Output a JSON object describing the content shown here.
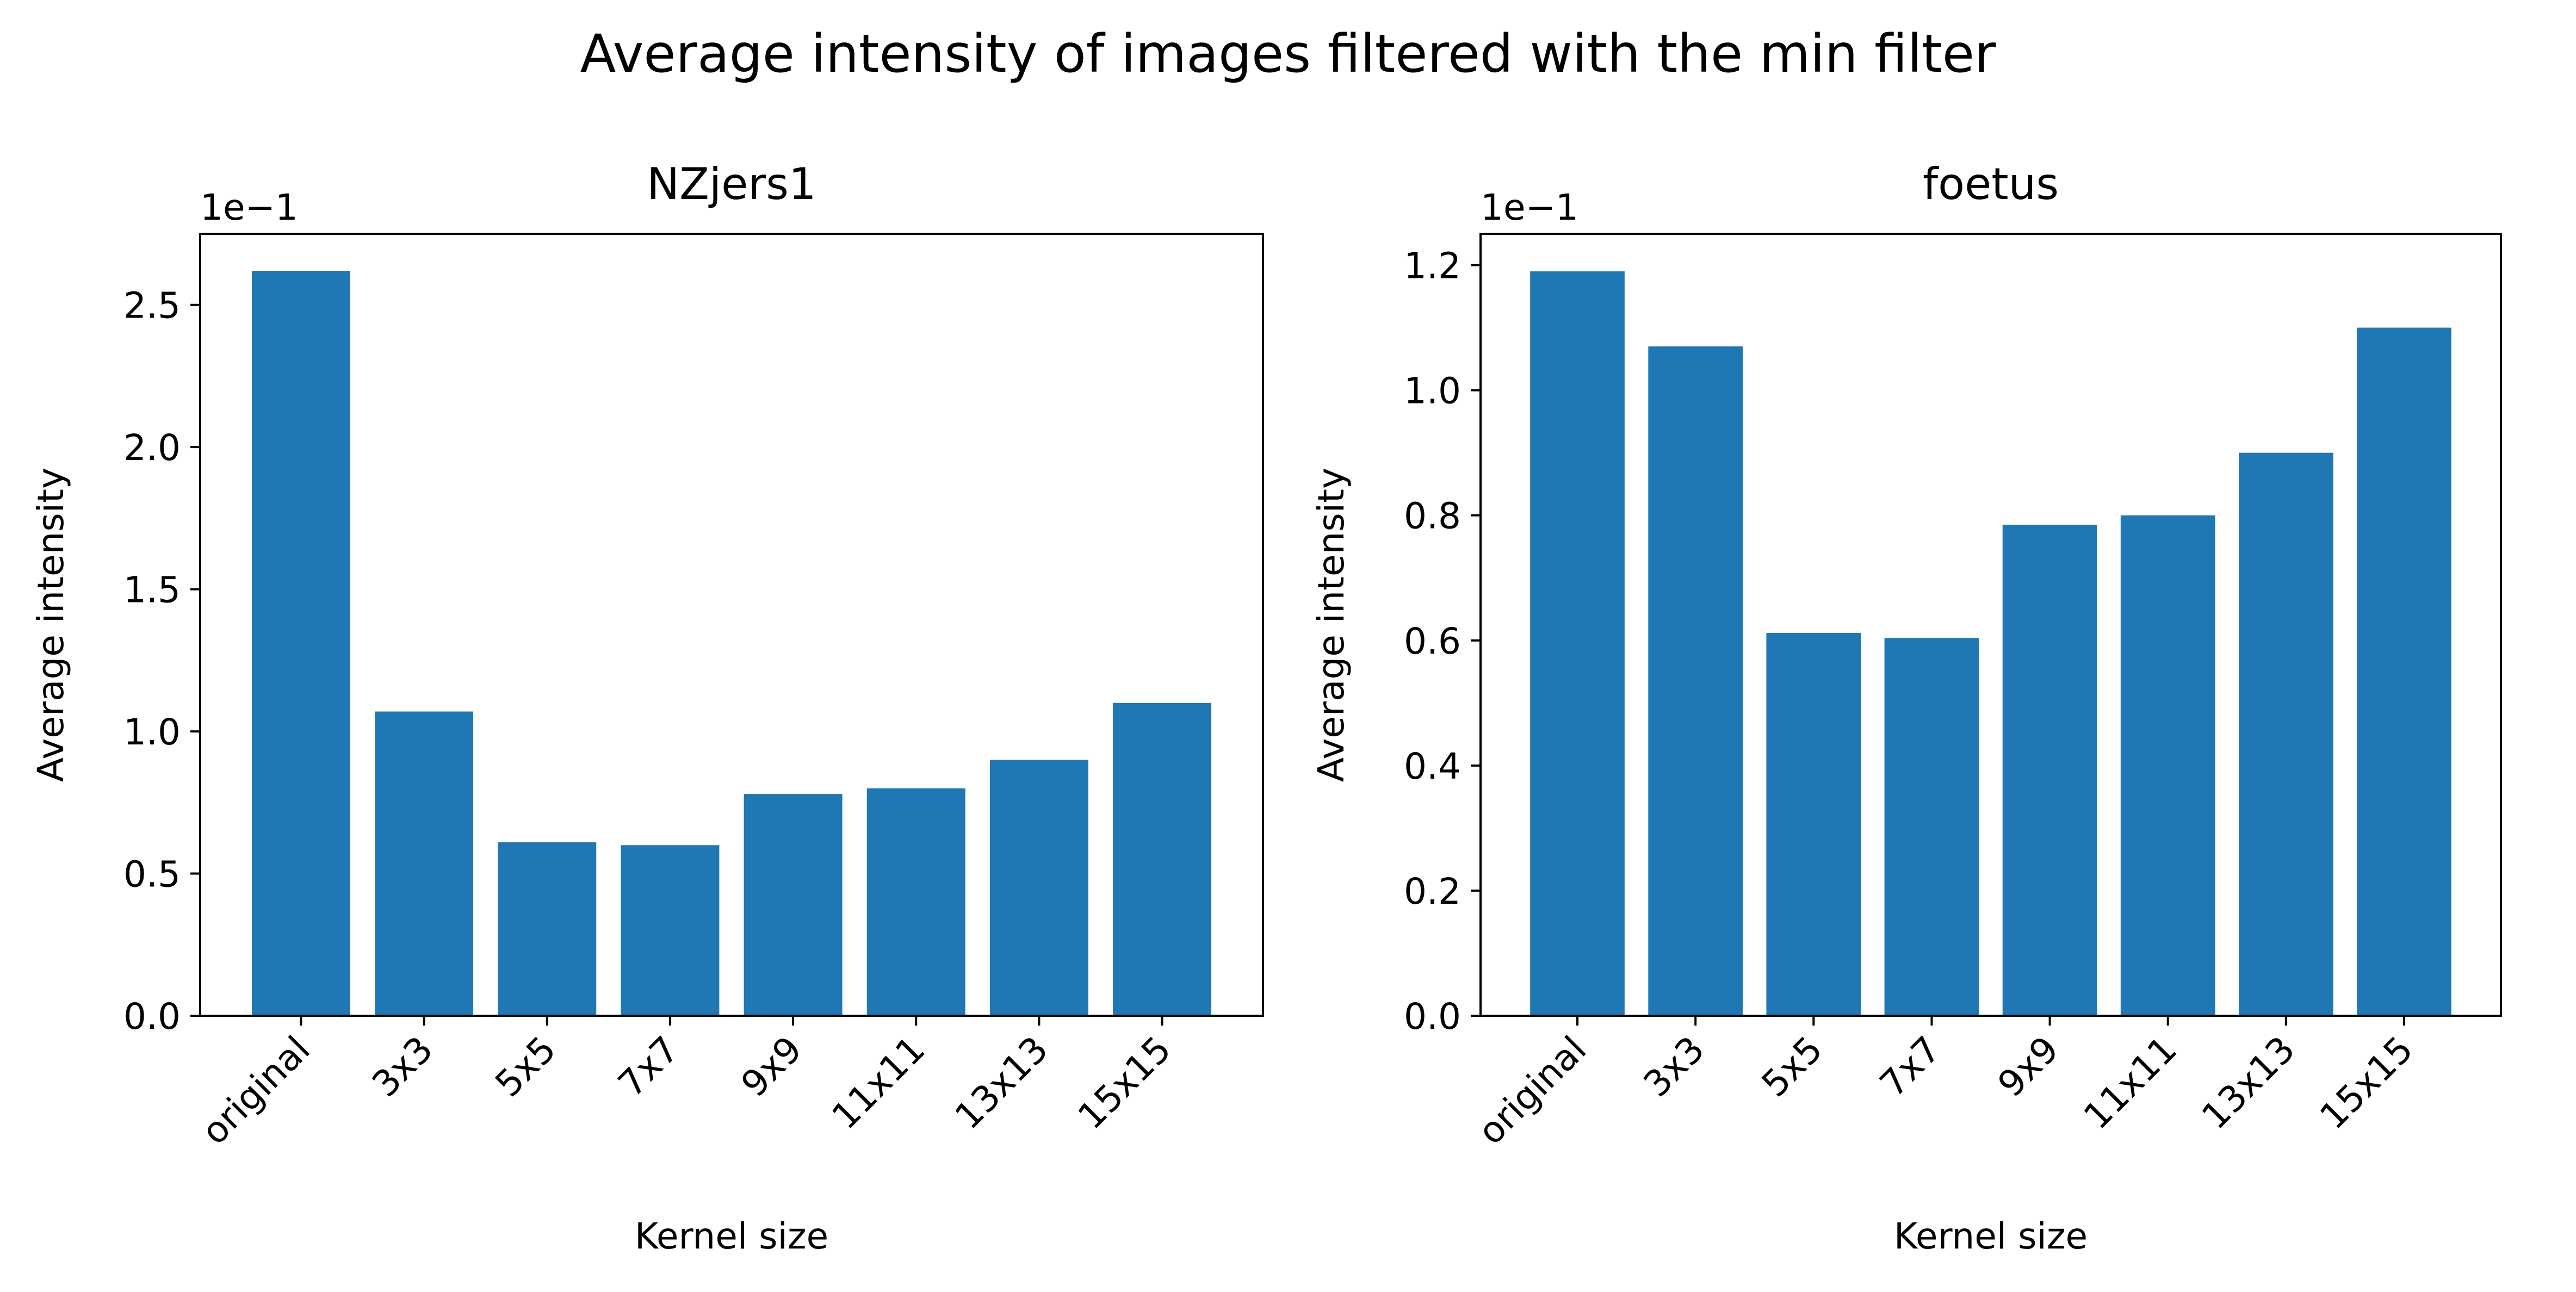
{
  "figure": {
    "suptitle": "Average intensity of images filtered with the min filter"
  },
  "chart_data": [
    {
      "type": "bar",
      "title": "NZjers1",
      "xlabel": "Kernel size",
      "ylabel": "Average intensity",
      "offset_label": "1e−1",
      "categories": [
        "original",
        "3x3",
        "5x5",
        "7x7",
        "9x9",
        "11x11",
        "13x13",
        "15x15"
      ],
      "values": [
        2.62,
        1.07,
        0.61,
        0.6,
        0.78,
        0.8,
        0.9,
        1.1
      ],
      "value_scale": 0.1,
      "ylim": [
        0,
        2.75
      ],
      "yticks": [
        0.0,
        0.5,
        1.0,
        1.5,
        2.0,
        2.5
      ],
      "ytick_labels": [
        "0.0",
        "0.5",
        "1.0",
        "1.5",
        "2.0",
        "2.5"
      ],
      "grid": false,
      "bar_color": "#1f77b4"
    },
    {
      "type": "bar",
      "title": "foetus",
      "xlabel": "Kernel size",
      "ylabel": "Average intensity",
      "offset_label": "1e−1",
      "categories": [
        "original",
        "3x3",
        "5x5",
        "7x7",
        "9x9",
        "11x11",
        "13x13",
        "15x15"
      ],
      "values": [
        1.19,
        1.07,
        0.612,
        0.604,
        0.785,
        0.8,
        0.9,
        1.1
      ],
      "value_scale": 0.1,
      "ylim": [
        0,
        1.25
      ],
      "yticks": [
        0.0,
        0.2,
        0.4,
        0.6,
        0.8,
        1.0,
        1.2
      ],
      "ytick_labels": [
        "0.0",
        "0.2",
        "0.4",
        "0.6",
        "0.8",
        "1.0",
        "1.2"
      ],
      "grid": false,
      "bar_color": "#1f77b4"
    }
  ]
}
